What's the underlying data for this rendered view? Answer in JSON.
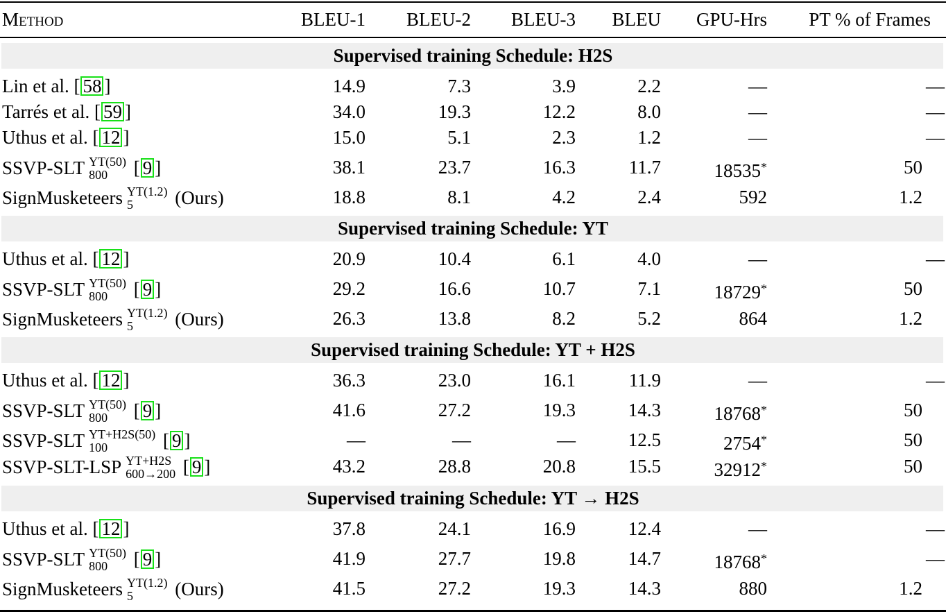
{
  "header": {
    "method": "Method",
    "bleu1": "BLEU-1",
    "bleu2": "BLEU-2",
    "bleu3": "BLEU-3",
    "bleu": "BLEU",
    "gpu": "GPU-Hrs",
    "pt": "PT % of Frames"
  },
  "sections": [
    {
      "title": "Supervised training Schedule: H2S",
      "rows": [
        {
          "name": "Lin et al. [",
          "cite": "58",
          "tail": "]",
          "sup": "",
          "sub": "",
          "suffix": "",
          "b1": "14.9",
          "b2": "7.3",
          "b3": "3.9",
          "b4": "2.2",
          "gpu": "—",
          "star": "",
          "pt": "—"
        },
        {
          "name": "Tarrés et al. [",
          "cite": "59",
          "tail": "]",
          "sup": "",
          "sub": "",
          "suffix": "",
          "b1": "34.0",
          "b2": "19.3",
          "b3": "12.2",
          "b4": "8.0",
          "gpu": "—",
          "star": "",
          "pt": "—"
        },
        {
          "name": "Uthus et al. [",
          "cite": "12",
          "tail": "]",
          "sup": "",
          "sub": "",
          "suffix": "",
          "b1": "15.0",
          "b2": "5.1",
          "b3": "2.3",
          "b4": "1.2",
          "gpu": "—",
          "star": "",
          "pt": "—"
        },
        {
          "name": "SSVP-SLT",
          "cite": "9",
          "tail": "]",
          "sup": "YT(50)",
          "sub": "800",
          "suffix": "",
          "b1": "38.1",
          "b2": "23.7",
          "b3": "16.3",
          "b4": "11.7",
          "gpu": "18535",
          "star": "*",
          "pt": "50"
        },
        {
          "name": "SignMusketeers",
          "cite": "",
          "tail": "",
          "sup": "YT(1.2)",
          "sub": "5",
          "suffix": "(Ours)",
          "b1": "18.8",
          "b2": "8.1",
          "b3": "4.2",
          "b4": "2.4",
          "gpu": "592",
          "star": "",
          "pt": "1.2"
        }
      ]
    },
    {
      "title": "Supervised training Schedule: YT",
      "rows": [
        {
          "name": "Uthus et al. [",
          "cite": "12",
          "tail": "]",
          "sup": "",
          "sub": "",
          "suffix": "",
          "b1": "20.9",
          "b2": "10.4",
          "b3": "6.1",
          "b4": "4.0",
          "gpu": "—",
          "star": "",
          "pt": "—"
        },
        {
          "name": "SSVP-SLT",
          "cite": "9",
          "tail": "]",
          "sup": "YT(50)",
          "sub": "800",
          "suffix": "",
          "b1": "29.2",
          "b2": "16.6",
          "b3": "10.7",
          "b4": "7.1",
          "gpu": "18729",
          "star": "*",
          "pt": "50"
        },
        {
          "name": "SignMusketeers",
          "cite": "",
          "tail": "",
          "sup": "YT(1.2)",
          "sub": "5",
          "suffix": "(Ours)",
          "b1": "26.3",
          "b2": "13.8",
          "b3": "8.2",
          "b4": "5.2",
          "gpu": "864",
          "star": "",
          "pt": "1.2"
        }
      ]
    },
    {
      "title": "Supervised training Schedule: YT + H2S",
      "rows": [
        {
          "name": "Uthus et al. [",
          "cite": "12",
          "tail": "]",
          "sup": "",
          "sub": "",
          "suffix": "",
          "b1": "36.3",
          "b2": "23.0",
          "b3": "16.1",
          "b4": "11.9",
          "gpu": "—",
          "star": "",
          "pt": "—"
        },
        {
          "name": "SSVP-SLT",
          "cite": "9",
          "tail": "]",
          "sup": "YT(50)",
          "sub": "800",
          "suffix": "",
          "b1": "41.6",
          "b2": "27.2",
          "b3": "19.3",
          "b4": "14.3",
          "gpu": "18768",
          "star": "*",
          "pt": "50"
        },
        {
          "name": "SSVP-SLT",
          "cite": "9",
          "tail": "]",
          "sup": "YT+H2S(50)",
          "sub": "100",
          "suffix": "",
          "b1": "—",
          "b2": "—",
          "b3": "—",
          "b4": "12.5",
          "gpu": "2754",
          "star": "*",
          "pt": "50"
        },
        {
          "name": "SSVP-SLT-LSP",
          "cite": "9",
          "tail": "]",
          "sup": "YT+H2S",
          "sub": "600→200",
          "suffix": "",
          "b1": "43.2",
          "b2": "28.8",
          "b3": "20.8",
          "b4": "15.5",
          "gpu": "32912",
          "star": "*",
          "pt": "50"
        }
      ]
    },
    {
      "title": "Supervised training Schedule: YT → H2S",
      "rows": [
        {
          "name": "Uthus et al. [",
          "cite": "12",
          "tail": "]",
          "sup": "",
          "sub": "",
          "suffix": "",
          "b1": "37.8",
          "b2": "24.1",
          "b3": "16.9",
          "b4": "12.4",
          "gpu": "—",
          "star": "",
          "pt": "—"
        },
        {
          "name": "SSVP-SLT",
          "cite": "9",
          "tail": "]",
          "sup": "YT(50)",
          "sub": "800",
          "suffix": "",
          "b1": "41.9",
          "b2": "27.7",
          "b3": "19.8",
          "b4": "14.7",
          "gpu": "18768",
          "star": "*",
          "pt": "—"
        },
        {
          "name": "SignMusketeers",
          "cite": "",
          "tail": "",
          "sup": "YT(1.2)",
          "sub": "5",
          "suffix": "(Ours)",
          "b1": "41.5",
          "b2": "27.2",
          "b3": "19.3",
          "b4": "14.3",
          "gpu": "880",
          "star": "",
          "pt": "1.2"
        }
      ]
    }
  ],
  "colors": {
    "band": "#efefef",
    "cite_border": "#18e018"
  }
}
